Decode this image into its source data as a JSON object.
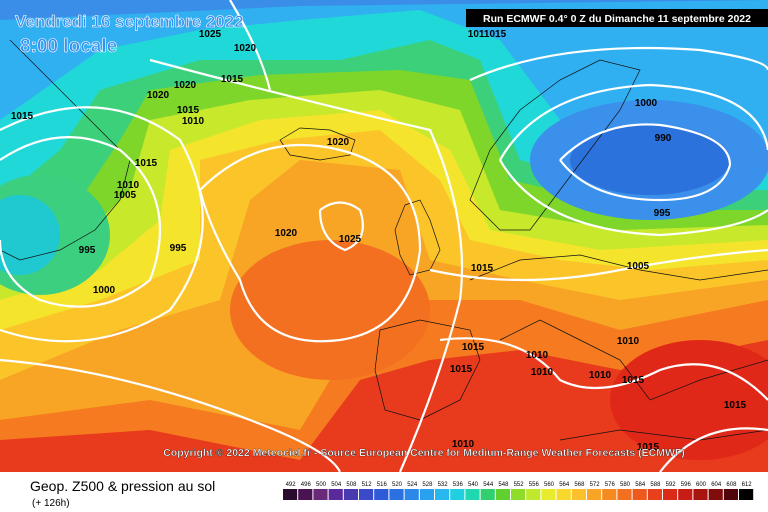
{
  "header": {
    "date": "Vendredi 16 septembre 2022",
    "time": "8:00 locale",
    "run": "Run ECMWF 0.4° 0 Z du Dimanche 11 septembre 2022"
  },
  "map": {
    "isobar_labels": [
      "1025",
      "1020",
      "1011015",
      "1015",
      "1020",
      "1015",
      "1020",
      "1015",
      "1010",
      "1015",
      "1010",
      "1005",
      "995",
      "995",
      "1000",
      "1020",
      "1025",
      "1020",
      "1000",
      "990",
      "995",
      "1005",
      "1015",
      "1015",
      "1015",
      "1010",
      "1010",
      "1010",
      "1010",
      "1015",
      "1015",
      "1010",
      "1015"
    ],
    "copyright": "Copyright © 2022 Meteociel.fr - Source European Centre for Medium-Range Weather Forecasts (ECMWF)"
  },
  "footer": {
    "title": "Geop. Z500 & pression au sol",
    "lead": "(+ 126h)",
    "scale": [
      492,
      496,
      500,
      504,
      508,
      512,
      516,
      520,
      524,
      528,
      532,
      536,
      540,
      544,
      548,
      552,
      556,
      560,
      564,
      568,
      572,
      576,
      580,
      584,
      588,
      592,
      596,
      600,
      604,
      608,
      612
    ]
  }
}
